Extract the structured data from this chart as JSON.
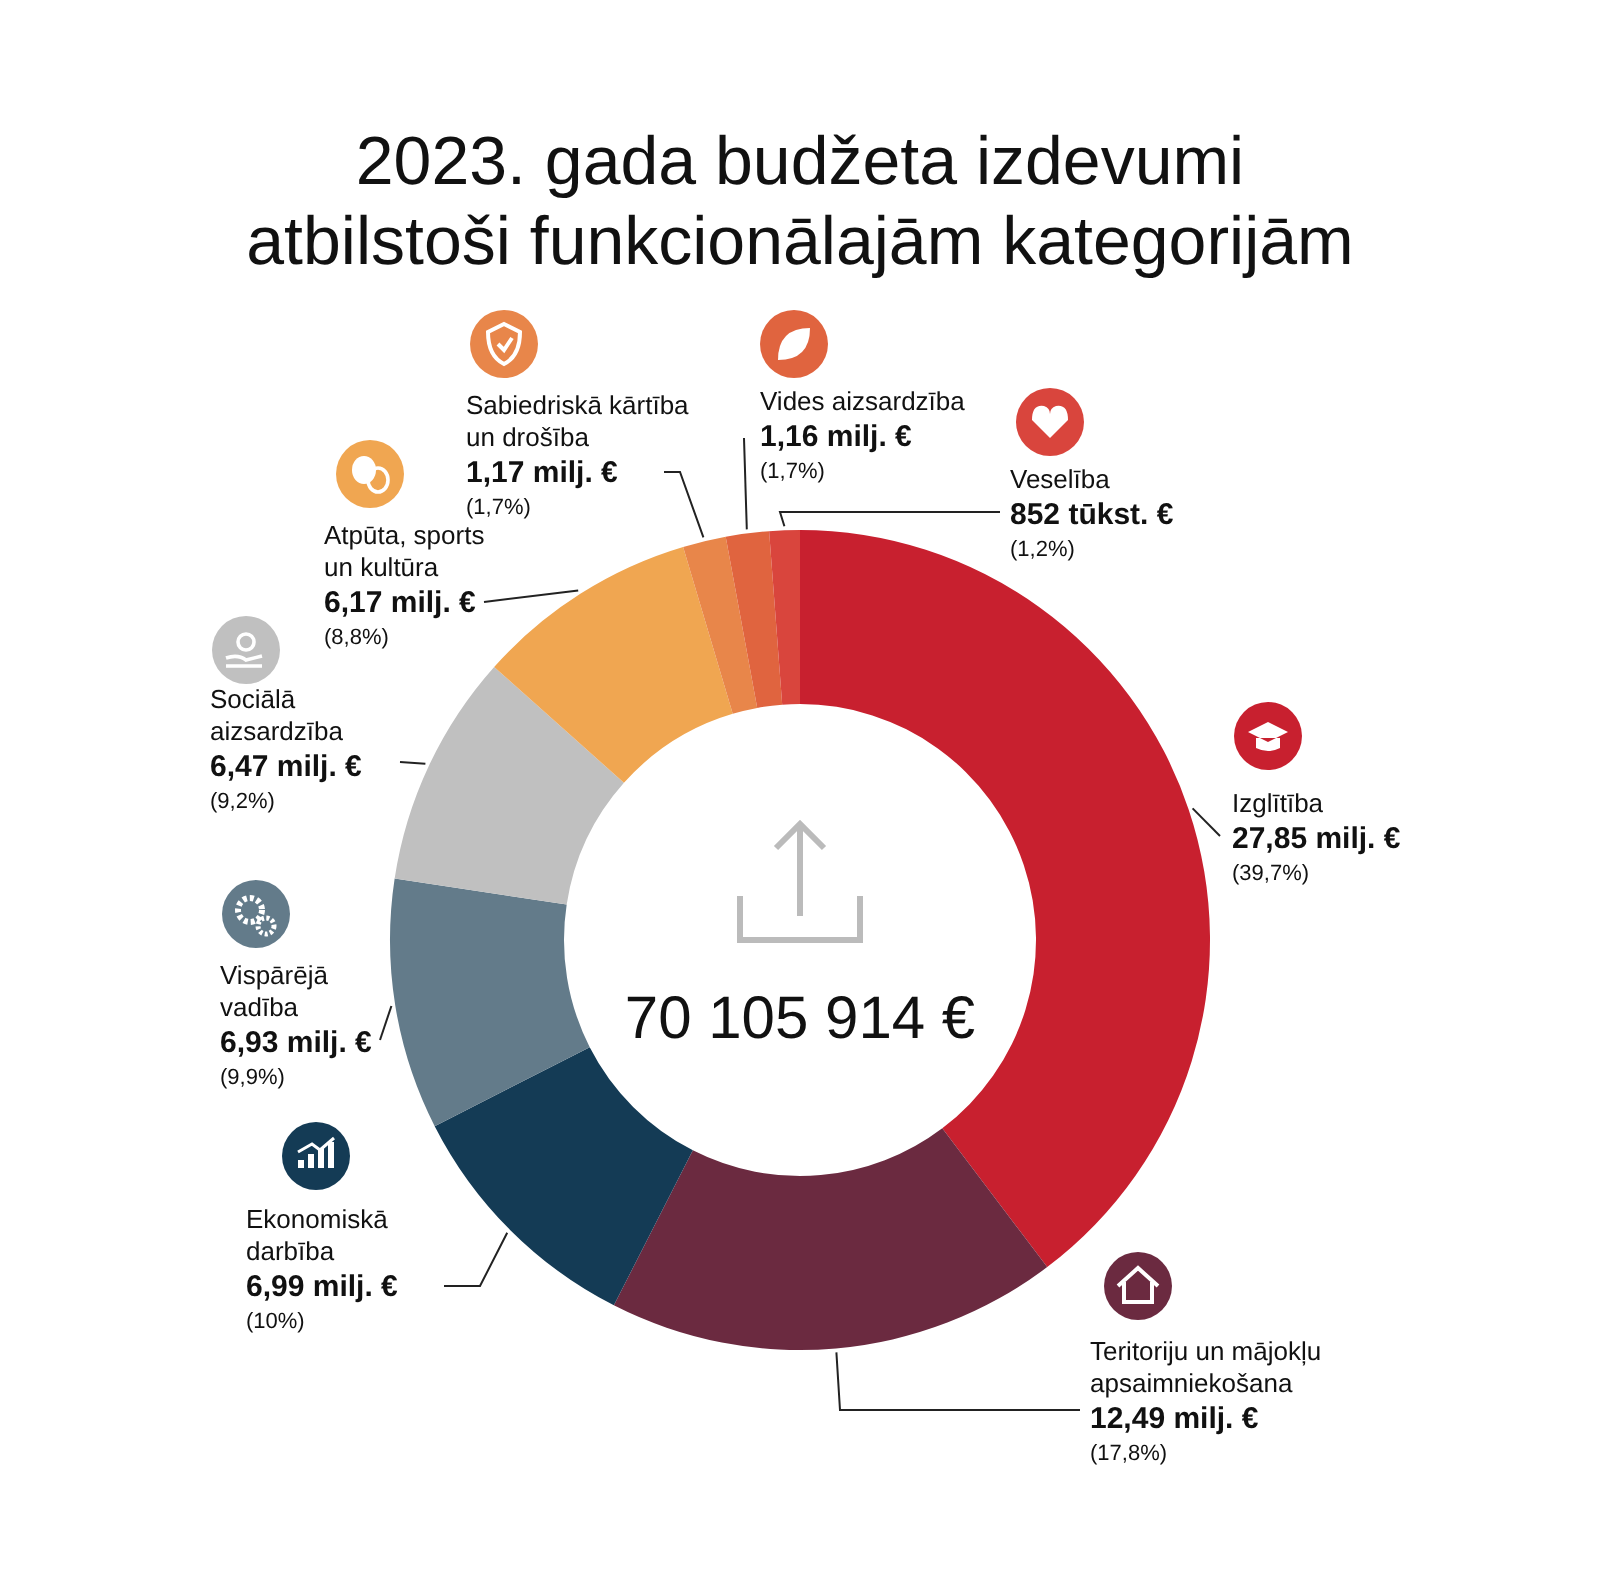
{
  "chart_data": {
    "type": "donut",
    "title": "2023. gada budžeta izdevumi atbilstoši funkcionālajām kategorijām",
    "categories": [
      "Izglītība",
      "Teritoriju un mājokļu apsaimniekošana",
      "Ekonomiskā darbība",
      "Vispārējā vadība",
      "Sociālā aizsardzība",
      "Atpūta, sports un kultūra",
      "Sabiedriskā kārtība un drošība",
      "Vides aizsardzība",
      "Veselība"
    ],
    "values": [
      39.7,
      17.8,
      10,
      9.9,
      9.2,
      8.8,
      1.7,
      1.7,
      1.2
    ],
    "colors": [
      "#c8202f",
      "#6b2a40",
      "#143b55",
      "#637b8a",
      "#c0c0c0",
      "#f0a651",
      "#e8864a",
      "#e0643f",
      "#d9453d"
    ],
    "value_labels": [
      "27,85 milj. €\n(39,7%)",
      "12,49 milj. €\n(17,8%)",
      "6,99 milj. €\n(10%)",
      "6,93 milj. €\n(9,9%)",
      "6,47 milj. €\n(9,2%)",
      "6,17 milj. €\n(8,8%)",
      "1,17 milj. €\n(1,7%)",
      "1,16 milj. €\n(1,7%)",
      "852 tūkst. €\n(1,2%)"
    ],
    "annotations": [
      "70 105 914 €"
    ]
  }
}
